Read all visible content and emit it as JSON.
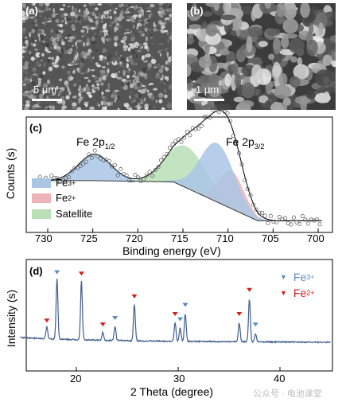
{
  "panel_a": {
    "label": "(a)",
    "scale_text": "5 μm"
  },
  "panel_b": {
    "label": "(b)",
    "scale_text": "1 μm"
  },
  "panel_c": {
    "label": "(c)",
    "ylabel": "Counts (s)",
    "xlabel": "Binding energy (eV)",
    "peak_left": {
      "text": "Fe 2p",
      "sub": "1/2"
    },
    "peak_right": {
      "text": "Fe 2p",
      "sub": "3/2"
    },
    "xticks": [
      "730",
      "725",
      "720",
      "715",
      "710",
      "705",
      "700"
    ],
    "legend": [
      {
        "base": "Fe",
        "sup": "3+",
        "color": "#a9c6e5"
      },
      {
        "base": "Fe",
        "sup": "2+",
        "color": "#efb4b8"
      },
      {
        "base": "Satellite",
        "sup": "",
        "color": "#b9dfb5"
      }
    ]
  },
  "panel_d": {
    "label": "(d)",
    "ylabel": "Intensity (s)",
    "xlabel": "2 Theta (degree)",
    "xticks": [
      "20",
      "30",
      "40"
    ],
    "legend": [
      {
        "base": "Fe",
        "sup": "3+",
        "color": "#5a8cc4",
        "marker": "▼"
      },
      {
        "base": "Fe",
        "sup": "2+",
        "color": "#d61e1e",
        "marker": "▼"
      }
    ]
  },
  "watermark": "公众号 · 电池课堂",
  "chart_data": [
    {
      "type": "line",
      "panel": "c",
      "title": "",
      "xlabel": "Binding energy (eV)",
      "ylabel": "Counts (s)",
      "xlim": [
        732,
        699
      ],
      "x_reversed": true,
      "series": [
        {
          "name": "Fe3+",
          "peaks": [
            {
              "center": 724.8,
              "height": 0.35,
              "width": 1.8
            },
            {
              "center": 711.2,
              "height": 0.78,
              "width": 1.9
            }
          ]
        },
        {
          "name": "Fe2+",
          "peaks": [
            {
              "center": 709.6,
              "height": 0.5,
              "width": 1.4
            }
          ]
        },
        {
          "name": "Satellite",
          "peaks": [
            {
              "center": 714.6,
              "height": 0.55,
              "width": 2.2
            }
          ]
        }
      ]
    },
    {
      "type": "line",
      "panel": "d",
      "title": "",
      "xlabel": "2 Theta (degree)",
      "ylabel": "Intensity (s)",
      "xlim": [
        14.5,
        45
      ],
      "peaks": [
        {
          "x": 17.1,
          "h": 0.18,
          "phase": "Fe2+"
        },
        {
          "x": 18.1,
          "h": 0.92,
          "phase": "Fe3+"
        },
        {
          "x": 20.5,
          "h": 0.9,
          "phase": "Fe2+"
        },
        {
          "x": 22.6,
          "h": 0.12,
          "phase": "Fe2+"
        },
        {
          "x": 23.8,
          "h": 0.22,
          "phase": "Fe3+"
        },
        {
          "x": 25.7,
          "h": 0.55,
          "phase": "Fe2+"
        },
        {
          "x": 29.7,
          "h": 0.28,
          "phase": "Fe2+"
        },
        {
          "x": 30.2,
          "h": 0.2,
          "phase": "Fe3+"
        },
        {
          "x": 30.7,
          "h": 0.42,
          "phase": "Fe3+"
        },
        {
          "x": 36.0,
          "h": 0.28,
          "phase": "Fe2+"
        },
        {
          "x": 37.0,
          "h": 0.65,
          "phase": "Fe2+"
        },
        {
          "x": 37.6,
          "h": 0.12,
          "phase": "Fe3+"
        }
      ]
    }
  ]
}
